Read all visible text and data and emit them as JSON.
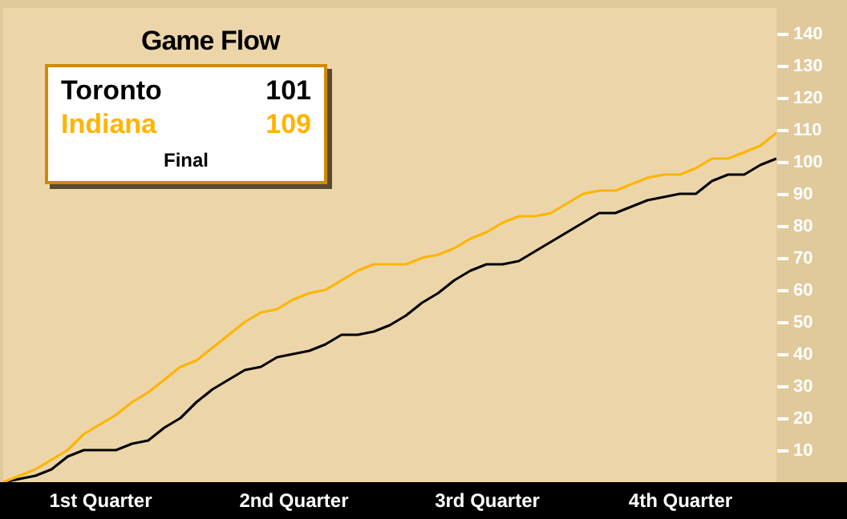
{
  "chart_data": {
    "type": "line",
    "title": "Game Flow",
    "categories": [
      null,
      null,
      null,
      null,
      null,
      null,
      "1st Quarter",
      null,
      null,
      null,
      null,
      null,
      null,
      null,
      null,
      null,
      null,
      null,
      "2nd Quarter",
      null,
      null,
      null,
      null,
      null,
      null,
      null,
      null,
      null,
      null,
      null,
      "3rd Quarter",
      null,
      null,
      null,
      null,
      null,
      null,
      null,
      null,
      null,
      null,
      null,
      "4th Quarter",
      null,
      null,
      null,
      null,
      null,
      null
    ],
    "series": [
      {
        "name": "Toronto",
        "color": "#000000",
        "values": [
          0,
          1,
          2,
          4,
          8,
          10,
          10,
          10,
          12,
          13,
          17,
          20,
          25,
          29,
          32,
          35,
          36,
          39,
          40,
          41,
          43,
          46,
          46,
          47,
          49,
          52,
          56,
          59,
          63,
          66,
          68,
          68,
          69,
          72,
          75,
          78,
          81,
          84,
          84,
          86,
          88,
          89,
          90,
          90,
          94,
          96,
          96,
          99,
          101
        ]
      },
      {
        "name": "Indiana",
        "color": "#ffb400",
        "values": [
          0,
          2,
          4,
          7,
          10,
          15,
          18,
          21,
          25,
          28,
          32,
          36,
          38,
          42,
          46,
          50,
          53,
          54,
          57,
          59,
          60,
          63,
          66,
          68,
          68,
          68,
          70,
          71,
          73,
          76,
          78,
          81,
          83,
          83,
          84,
          87,
          90,
          91,
          91,
          93,
          95,
          96,
          96,
          98,
          101,
          101,
          103,
          105,
          109
        ]
      }
    ],
    "ylim": [
      0,
      148
    ],
    "yticks": [
      10,
      20,
      30,
      40,
      50,
      60,
      70,
      80,
      90,
      100,
      110,
      120,
      130,
      140
    ],
    "annotations": [
      "101",
      "109",
      "Final"
    ],
    "legend": "top left",
    "grid": false,
    "marker": "none",
    "line_style": "solid"
  }
}
